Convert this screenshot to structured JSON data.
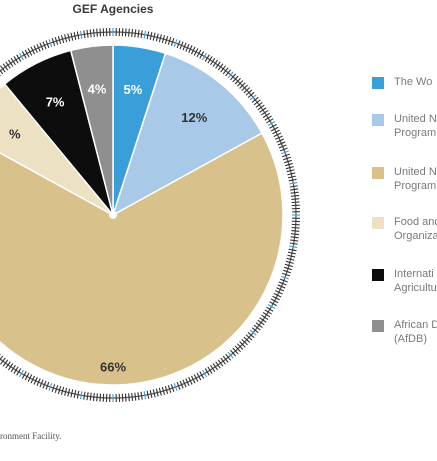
{
  "chart_data": {
    "type": "pie",
    "title": "GEF Agencies",
    "slices": [
      {
        "label": "The Wo",
        "value": 5,
        "display": "5%",
        "color": "#3a9fd8"
      },
      {
        "label": "United N\nProgram",
        "value": 12,
        "display": "12%",
        "color": "#a9c9e8"
      },
      {
        "label": "United N\nProgram",
        "value": 66,
        "display": "66%",
        "color": "#d9c18b"
      },
      {
        "label": "Food and\nOrganiza",
        "value": 6,
        "display": "%",
        "color": "#ece1c3"
      },
      {
        "label": "Internati\nAgricultu",
        "value": 7,
        "display": "7%",
        "color": "#0d0d0d"
      },
      {
        "label": "African D\n(AfDB)",
        "value": 4,
        "display": "4%",
        "color": "#8f8f8f"
      }
    ]
  },
  "footer": {
    "source_text": "ronment Facility."
  }
}
